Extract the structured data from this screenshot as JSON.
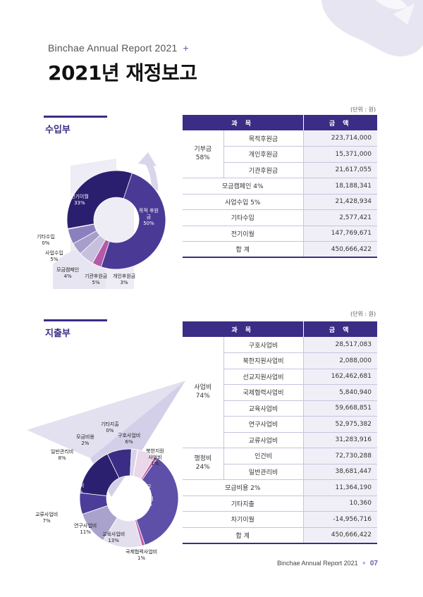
{
  "header": {
    "report_name": "Binchae Annual Report 2021",
    "plus": "+",
    "title": "2021년 재정보고"
  },
  "income": {
    "section_title": "수입부",
    "unit": "(단위 : 원)",
    "head": [
      "과 목",
      "금 액"
    ],
    "donation_group": {
      "label": "기부금",
      "pct": "58%"
    },
    "rows": [
      {
        "label": "목적후원금",
        "amount": "223,714,000"
      },
      {
        "label": "개인후원금",
        "amount": "15,371,000"
      },
      {
        "label": "기관후원금",
        "amount": "21,617,055"
      },
      {
        "label": "모금캠페인 4%",
        "amount": "18,188,341"
      },
      {
        "label": "사업수입 5%",
        "amount": "21,428,934"
      },
      {
        "label": "기타수입",
        "amount": "2,577,421"
      },
      {
        "label": "전기이월",
        "amount": "147,769,671"
      },
      {
        "label": "합 계",
        "amount": "450,666,422"
      }
    ],
    "chart_labels": [
      {
        "name": "전기이월",
        "pct": "33%"
      },
      {
        "name": "목적 후원금",
        "pct": "50%"
      },
      {
        "name": "개인후원금",
        "pct": "3%"
      },
      {
        "name": "기관후원금",
        "pct": "5%"
      },
      {
        "name": "모금캠페인",
        "pct": "4%"
      },
      {
        "name": "사업수입",
        "pct": "5%"
      },
      {
        "name": "기타수입",
        "pct": "0%"
      }
    ]
  },
  "expense": {
    "section_title": "지출부",
    "unit": "(단위 : 원)",
    "head": [
      "과 목",
      "금 액"
    ],
    "business_group": {
      "label": "사업비",
      "pct": "74%"
    },
    "admin_group": {
      "label": "행정비",
      "pct": "24%"
    },
    "business_rows": [
      {
        "label": "구호사업비",
        "amount": "28,517,083"
      },
      {
        "label": "북한지원사업비",
        "amount": "2,088,000"
      },
      {
        "label": "선교지원사업비",
        "amount": "162,462,681"
      },
      {
        "label": "국제협력사업비",
        "amount": "5,840,940"
      },
      {
        "label": "교육사업비",
        "amount": "59,668,851"
      },
      {
        "label": "연구사업비",
        "amount": "52,975,382"
      },
      {
        "label": "교류사업비",
        "amount": "31,283,916"
      }
    ],
    "admin_rows": [
      {
        "label": "인건비",
        "amount": "72,730,288"
      },
      {
        "label": "일반관리비",
        "amount": "38,681,447"
      }
    ],
    "other_rows": [
      {
        "label": "모금비용 2%",
        "amount": "11,364,190"
      },
      {
        "label": "기타지출",
        "amount": "10,360"
      },
      {
        "label": "차기이월",
        "amount": "-14,956,716"
      },
      {
        "label": "합 계",
        "amount": "450,666,422"
      }
    ],
    "chart_labels": [
      {
        "name": "구호사업비",
        "pct": "6%"
      },
      {
        "name": "북한지원 사업비",
        "pct": "1%"
      },
      {
        "name": "선교 지원 사업비",
        "pct": "35%"
      },
      {
        "name": "국제협력사업비",
        "pct": "1%"
      },
      {
        "name": "교육사업비",
        "pct": "13%"
      },
      {
        "name": "연구사업비",
        "pct": "11%"
      },
      {
        "name": "교류사업비",
        "pct": "7%"
      },
      {
        "name": "인건비",
        "pct": "16%"
      },
      {
        "name": "일반관리비",
        "pct": "8%"
      },
      {
        "name": "모금비용",
        "pct": "2%"
      },
      {
        "name": "기타지출",
        "pct": "0%"
      }
    ]
  },
  "footer": {
    "report_name": "Binchae Annual Report 2021",
    "plus": "+",
    "page": "07"
  },
  "chart_data": [
    {
      "type": "pie",
      "categories": [
        "목적후원금",
        "개인후원금",
        "기관후원금",
        "모금캠페인",
        "사업수입",
        "기타수입",
        "전기이월"
      ],
      "values": [
        50,
        3,
        5,
        4,
        5,
        0,
        33
      ],
      "colors": [
        "#4a3a96",
        "#b45aa8",
        "#c6bfdd",
        "#a79fca",
        "#8b80bd",
        "#d9d4e8",
        "#2a1f6e"
      ]
    },
    {
      "type": "pie",
      "categories": [
        "구호사업비",
        "북한지원사업비",
        "선교지원사업비",
        "국제협력사업비",
        "교육사업비",
        "연구사업비",
        "교류사업비",
        "인건비",
        "일반관리비",
        "모금비용",
        "기타지출"
      ],
      "values": [
        6,
        1,
        35,
        1,
        13,
        11,
        7,
        16,
        8,
        2,
        0
      ],
      "colors": [
        "#ead7ea",
        "#c060a8",
        "#5e4fa8",
        "#c060a8",
        "#e3dfee",
        "#a9a2cd",
        "#4b3d99",
        "#2b2070",
        "#3b2d86",
        "#d8d2e8",
        "#e6e2f0"
      ]
    }
  ]
}
